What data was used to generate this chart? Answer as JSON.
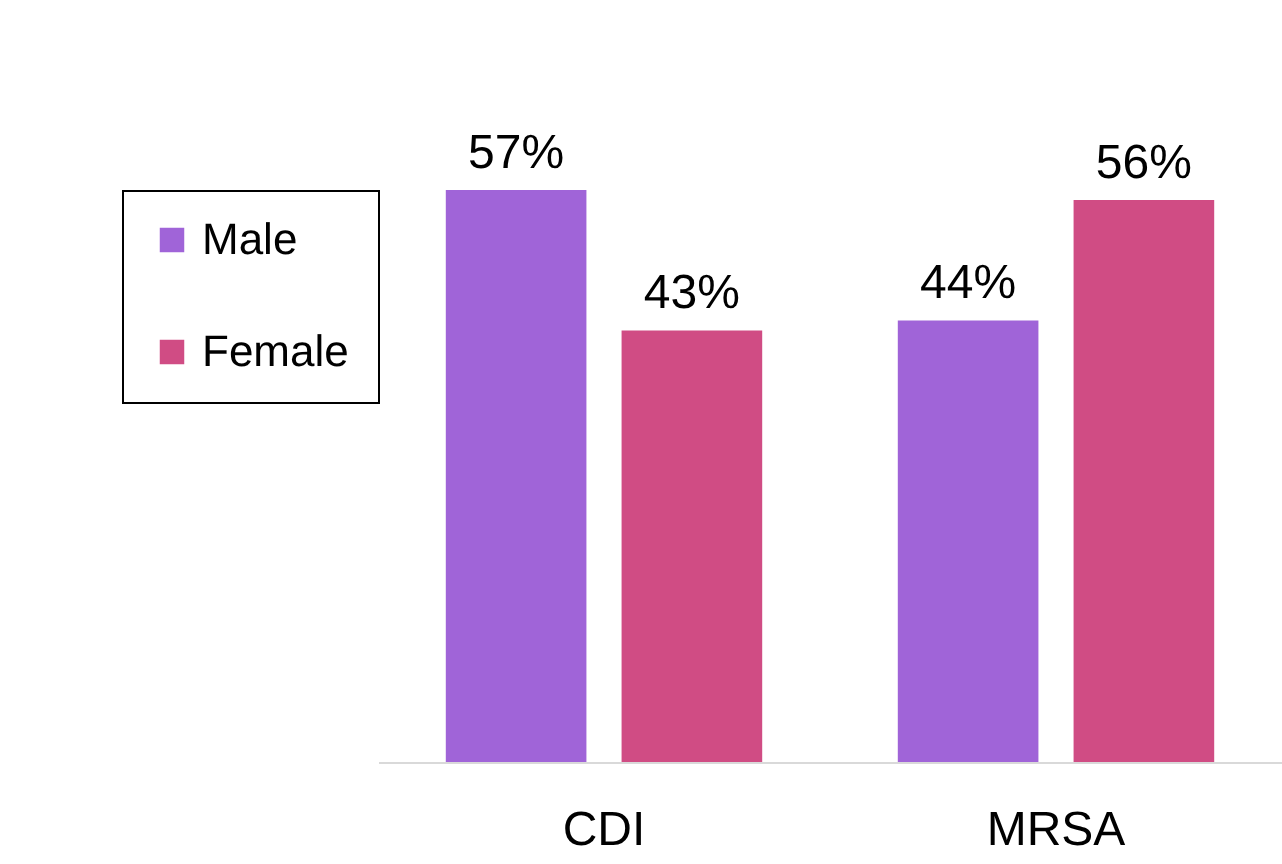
{
  "chart_data": {
    "type": "bar",
    "categories": [
      "CDI",
      "MRSA"
    ],
    "series": [
      {
        "name": "Male",
        "color": "#a064d8",
        "values": [
          57,
          44
        ],
        "value_labels": [
          "57%",
          "44%"
        ]
      },
      {
        "name": "Female",
        "color": "#d04c84",
        "values": [
          43,
          56
        ],
        "value_labels": [
          "43%",
          "56%"
        ]
      }
    ],
    "legend": "left",
    "tick_labels": "x"
  }
}
